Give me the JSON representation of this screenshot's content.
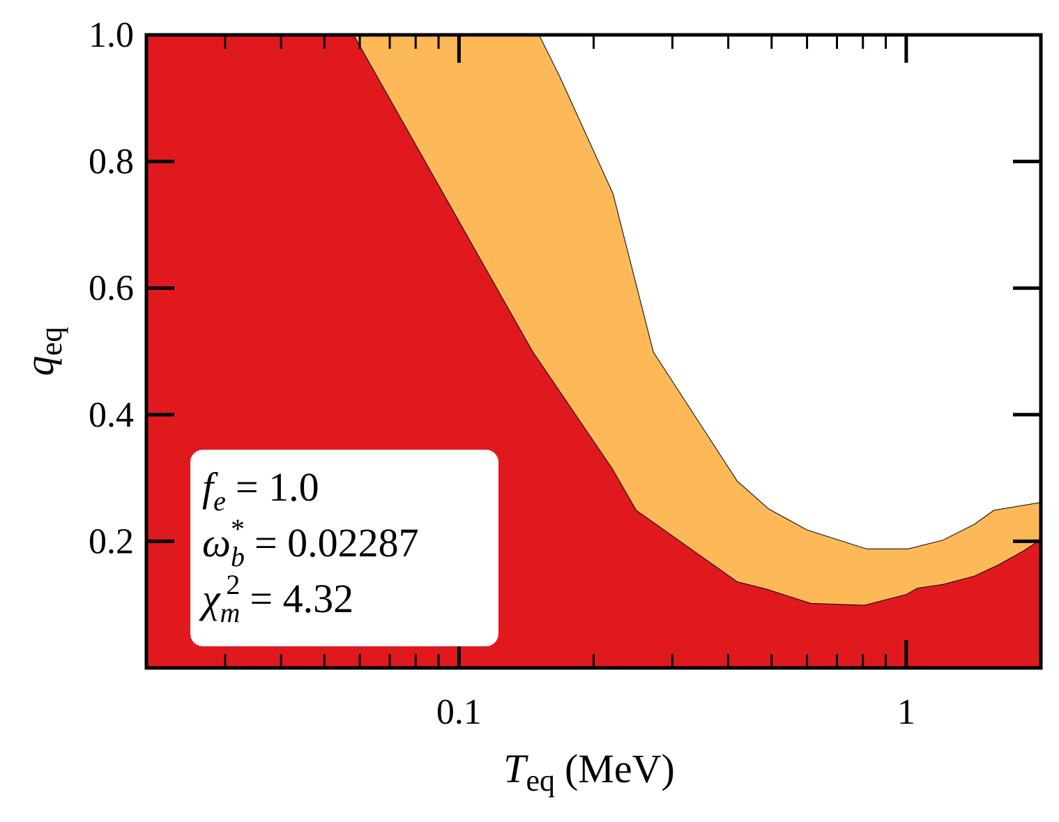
{
  "chart_data": {
    "type": "area",
    "xlabel": {
      "symbol": "T",
      "sub": "eq",
      "text": "(MeV)"
    },
    "ylabel": {
      "symbol": "q",
      "sub": "eq"
    },
    "xscale": "log",
    "xlim": [
      0.02,
      2
    ],
    "ylim": [
      0,
      1
    ],
    "xticks": [
      0.1,
      1
    ],
    "xminorticks": [
      0.03,
      0.04,
      0.05,
      0.06,
      0.07,
      0.08,
      0.09,
      0.2,
      0.3,
      0.4,
      0.5,
      0.6,
      0.7,
      0.8,
      0.9
    ],
    "yticks": [
      0.2,
      0.4,
      0.6,
      {
        "value": 0.8,
        "label": "0.8"
      },
      {
        "value": 1,
        "label": "1.0"
      }
    ],
    "regions": [
      {
        "color": "#fdb857",
        "x": [
          0.151,
          0.168,
          0.221,
          0.272,
          0.419,
          0.493,
          0.6,
          0.815,
          1.01,
          1.21,
          1.42,
          1.57,
          2.02
        ],
        "y": [
          1.0,
          0.934,
          0.749,
          0.499,
          0.295,
          0.251,
          0.218,
          0.188,
          0.188,
          0.202,
          0.227,
          0.249,
          0.262
        ]
      },
      {
        "color": "#e0191f",
        "x": [
          0.0581,
          0.146,
          0.22,
          0.249,
          0.419,
          0.484,
          0.611,
          0.806,
          1.0,
          1.06,
          1.21,
          1.42,
          1.61,
          1.83,
          2.02
        ],
        "y": [
          1.0,
          0.5,
          0.315,
          0.249,
          0.136,
          0.125,
          0.102,
          0.099,
          0.116,
          0.126,
          0.132,
          0.145,
          0.163,
          0.185,
          0.205
        ]
      }
    ],
    "annotations": [
      {
        "symbol": "f",
        "sub": "e",
        "text": "= 1.0"
      },
      {
        "symbol": "ω",
        "sub": "b",
        "sup": "*",
        "text": "= 0.02287"
      },
      {
        "symbol": "χ",
        "sub": "m",
        "sup": "2",
        "text": "= 4.32"
      }
    ]
  }
}
